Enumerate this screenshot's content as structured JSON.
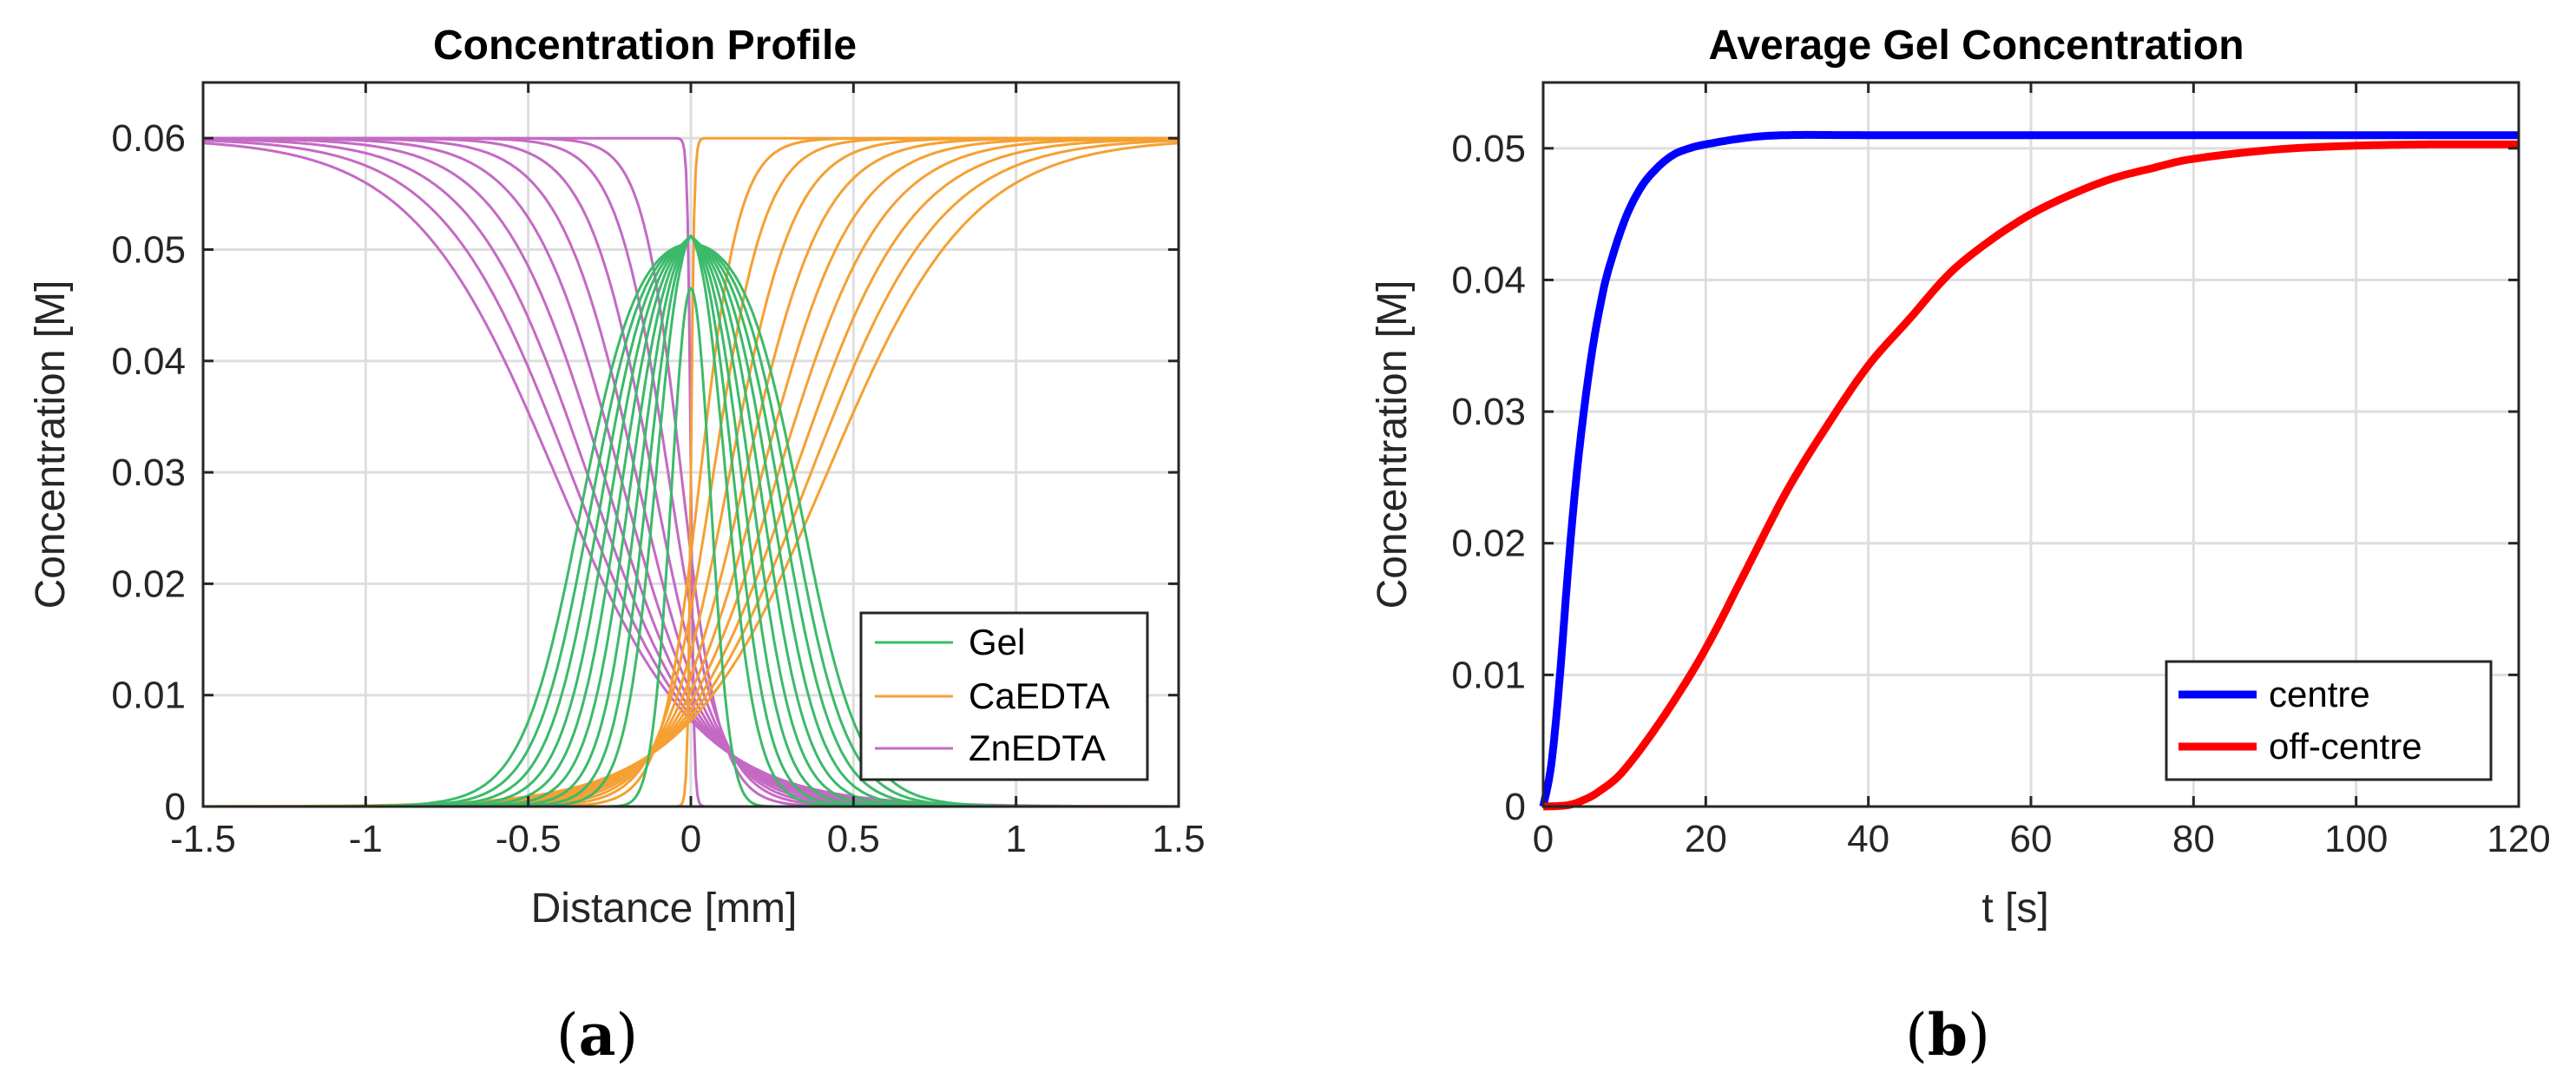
{
  "figure": {
    "label_a": "a",
    "label_b": "b"
  },
  "chart_data": [
    {
      "type": "line",
      "title": "Concentration Profile",
      "xlabel": "Distance [mm]",
      "ylabel": "Concentration [M]",
      "xlim": [
        -1.5,
        1.5
      ],
      "ylim": [
        0,
        0.065
      ],
      "xticks": [
        -1.5,
        -1,
        -0.5,
        0,
        0.5,
        1,
        1.5
      ],
      "xtick_labels": [
        "-1.5",
        "-1",
        "-0.5",
        "0",
        "0.5",
        "1",
        "1.5"
      ],
      "yticks": [
        0,
        0.01,
        0.02,
        0.03,
        0.04,
        0.05,
        0.06
      ],
      "ytick_labels": [
        "0",
        "0.01",
        "0.02",
        "0.03",
        "0.04",
        "0.05",
        "0.06"
      ],
      "grid": true,
      "legend_position": "bottom-right",
      "legend": [
        "Gel",
        "CaEDTA",
        "ZnEDTA"
      ],
      "series": [
        {
          "name": "Gel",
          "color": "#3cba6a",
          "description": "family of curves at successive times",
          "peak_values": [
            0.0465,
            0.0505,
            0.0505,
            0.0505,
            0.0505,
            0.0505,
            0.0505,
            0.0505,
            0.0505,
            0.0505
          ],
          "half_widths_mm": [
            0.07,
            0.1,
            0.13,
            0.16,
            0.19,
            0.22,
            0.25,
            0.28,
            0.31,
            0.34
          ],
          "center_peak": 0.0512
        },
        {
          "name": "CaEDTA",
          "color": "#f5a033",
          "description": "right-side fronts rising to 0.06",
          "plateau": 0.06,
          "front_positions_mm": [
            0.0,
            0.03,
            0.07,
            0.12,
            0.17,
            0.22,
            0.27,
            0.32,
            0.37,
            0.42
          ],
          "front_widths_mm": [
            0.005,
            0.06,
            0.08,
            0.1,
            0.12,
            0.14,
            0.16,
            0.18,
            0.2,
            0.22
          ]
        },
        {
          "name": "ZnEDTA",
          "color": "#c46ac4",
          "description": "left-side fronts falling from 0.06",
          "plateau": 0.06,
          "front_positions_mm": [
            0.0,
            -0.03,
            -0.07,
            -0.12,
            -0.17,
            -0.22,
            -0.27,
            -0.32,
            -0.37,
            -0.42
          ],
          "front_widths_mm": [
            0.005,
            0.06,
            0.08,
            0.1,
            0.12,
            0.14,
            0.16,
            0.18,
            0.2,
            0.22
          ]
        }
      ]
    },
    {
      "type": "line",
      "title": "Average Gel Concentration",
      "xlabel": "t [s]",
      "ylabel": "Concentration [M]",
      "xlim": [
        0,
        120
      ],
      "ylim": [
        0,
        0.055
      ],
      "xticks": [
        0,
        20,
        40,
        60,
        80,
        100,
        120
      ],
      "xtick_labels": [
        "0",
        "20",
        "40",
        "60",
        "80",
        "100",
        "120"
      ],
      "yticks": [
        0,
        0.01,
        0.02,
        0.03,
        0.04,
        0.05
      ],
      "ytick_labels": [
        "0",
        "0.01",
        "0.02",
        "0.03",
        "0.04",
        "0.05"
      ],
      "grid": true,
      "legend_position": "bottom-right",
      "legend": [
        "centre",
        "off-centre"
      ],
      "series": [
        {
          "name": "centre",
          "color": "#0000ff",
          "x": [
            0,
            1,
            2,
            3,
            4,
            5,
            6,
            7,
            8,
            10,
            12,
            14,
            16,
            18,
            20,
            25,
            30,
            40,
            60,
            80,
            100,
            120
          ],
          "y": [
            0,
            0.0032,
            0.0095,
            0.0175,
            0.0245,
            0.03,
            0.0345,
            0.038,
            0.0407,
            0.0445,
            0.047,
            0.0485,
            0.0495,
            0.05,
            0.0503,
            0.0508,
            0.051,
            0.051,
            0.051,
            0.051,
            0.051,
            0.051
          ]
        },
        {
          "name": "off-centre",
          "color": "#ff0000",
          "x": [
            0,
            3,
            5,
            7,
            10,
            15,
            20,
            25,
            30,
            35,
            40,
            45,
            50,
            55,
            60,
            65,
            70,
            75,
            80,
            90,
            100,
            110,
            120
          ],
          "y": [
            0,
            0.0001,
            0.0005,
            0.0012,
            0.0028,
            0.007,
            0.012,
            0.018,
            0.024,
            0.029,
            0.0335,
            0.037,
            0.0405,
            0.043,
            0.045,
            0.0465,
            0.0477,
            0.0485,
            0.0492,
            0.0499,
            0.0502,
            0.0503,
            0.0503
          ]
        }
      ]
    }
  ]
}
